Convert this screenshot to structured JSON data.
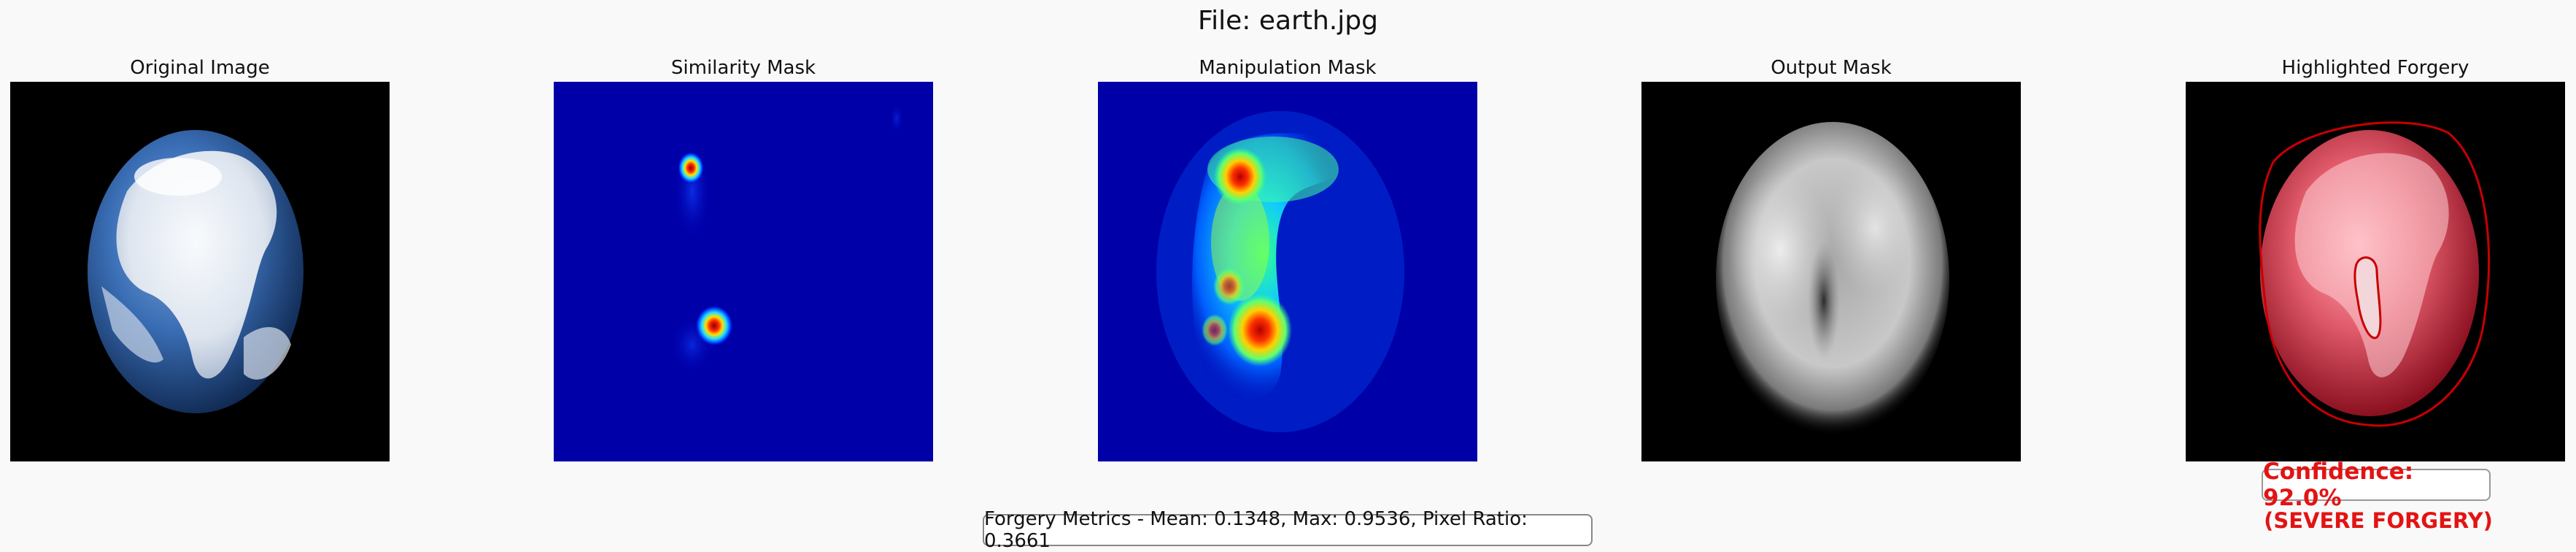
{
  "figure": {
    "title": "File: earth.jpg"
  },
  "panels": [
    {
      "title": "Original Image"
    },
    {
      "title": "Similarity Mask"
    },
    {
      "title": "Manipulation Mask"
    },
    {
      "title": "Output Mask"
    },
    {
      "title": "Highlighted Forgery"
    }
  ],
  "result": {
    "confidence": "Confidence: 92.0%",
    "severity": "(SEVERE FORGERY)",
    "metrics": "Forgery Metrics - Mean: 0.1348, Max: 0.9536, Pixel Ratio: 0.3661"
  },
  "colors": {
    "alert": "#e41313",
    "background": "#f9f9f9"
  }
}
